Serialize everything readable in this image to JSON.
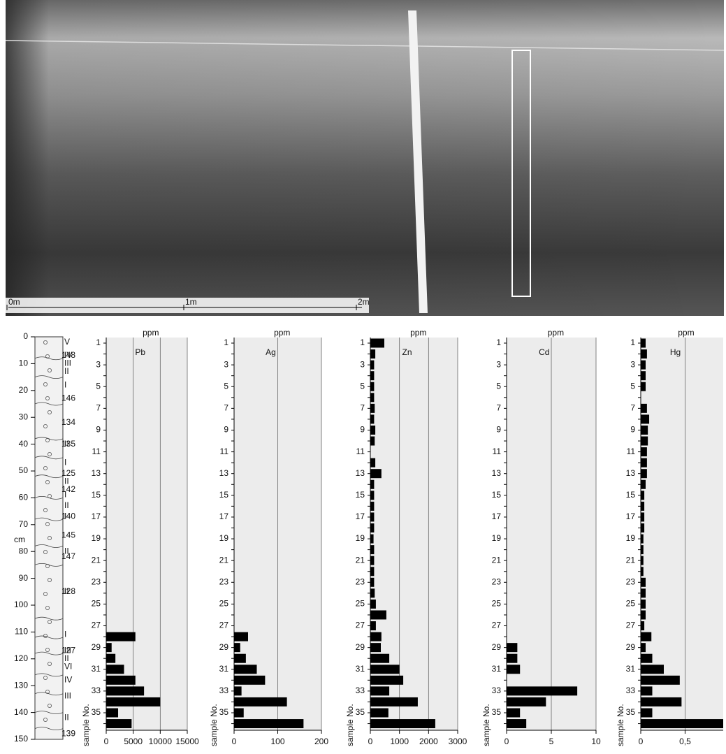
{
  "photo": {
    "scale_labels": [
      "0m",
      "1m",
      "2m"
    ]
  },
  "section_column": {
    "axis_label": "cm",
    "ylim": [
      0,
      150
    ],
    "yticks": [
      0,
      10,
      20,
      30,
      40,
      50,
      60,
      70,
      80,
      90,
      100,
      110,
      120,
      130,
      140,
      150
    ],
    "annotations": [
      {
        "label": "V",
        "depth": 2
      },
      {
        "label": "IV",
        "depth": 7
      },
      {
        "label": "148",
        "depth": 7
      },
      {
        "label": "III",
        "depth": 10
      },
      {
        "label": "II",
        "depth": 13
      },
      {
        "label": "I",
        "depth": 18
      },
      {
        "label": "146",
        "depth": 23
      },
      {
        "label": "134",
        "depth": 32
      },
      {
        "label": "135",
        "depth": 40
      },
      {
        "label": "II",
        "depth": 40
      },
      {
        "label": "I",
        "depth": 47
      },
      {
        "label": "125",
        "depth": 51
      },
      {
        "label": "II",
        "depth": 54
      },
      {
        "label": "142",
        "depth": 57
      },
      {
        "label": "I",
        "depth": 59
      },
      {
        "label": "II",
        "depth": 63
      },
      {
        "label": "140",
        "depth": 67
      },
      {
        "label": "I",
        "depth": 67
      },
      {
        "label": "145",
        "depth": 74
      },
      {
        "label": "II",
        "depth": 80
      },
      {
        "label": "147",
        "depth": 82
      },
      {
        "label": "128",
        "depth": 95
      },
      {
        "label": "II",
        "depth": 95
      },
      {
        "label": "I",
        "depth": 111
      },
      {
        "label": "127",
        "depth": 117
      },
      {
        "label": "III",
        "depth": 117
      },
      {
        "label": "II",
        "depth": 120
      },
      {
        "label": "VI",
        "depth": 123
      },
      {
        "label": "IV",
        "depth": 128
      },
      {
        "label": "III",
        "depth": 134
      },
      {
        "label": "II",
        "depth": 142
      },
      {
        "label": "139",
        "depth": 148
      }
    ]
  },
  "chart_data": [
    {
      "type": "bar",
      "orientation": "horizontal",
      "title": "Pb",
      "unit_label": "ppm",
      "ylabel": "sample No.",
      "color": "#000000",
      "grid": true,
      "categories": [
        1,
        null,
        3,
        null,
        5,
        null,
        7,
        null,
        9,
        null,
        11,
        null,
        13,
        null,
        15,
        null,
        17,
        null,
        19,
        null,
        21,
        null,
        23,
        null,
        25,
        null,
        27,
        null,
        29,
        null,
        31,
        null,
        33,
        null,
        35,
        null
      ],
      "values": [
        0,
        0,
        0,
        0,
        0,
        0,
        0,
        0,
        0,
        0,
        0,
        0,
        0,
        0,
        0,
        0,
        0,
        0,
        0,
        0,
        0,
        0,
        0,
        0,
        0,
        0,
        0,
        5400,
        1000,
        1700,
        3300,
        5400,
        7000,
        10000,
        2200,
        4700
      ],
      "xlim": [
        0,
        15000
      ],
      "xticks": [
        0,
        5000,
        10000,
        15000
      ]
    },
    {
      "type": "bar",
      "orientation": "horizontal",
      "title": "Ag",
      "unit_label": "ppm",
      "ylabel": "sample No.",
      "color": "#000000",
      "grid": true,
      "categories": [
        1,
        null,
        3,
        null,
        5,
        null,
        7,
        null,
        9,
        null,
        11,
        null,
        13,
        null,
        15,
        null,
        17,
        null,
        19,
        null,
        21,
        null,
        23,
        null,
        25,
        null,
        27,
        null,
        29,
        null,
        31,
        null,
        33,
        null,
        35,
        null
      ],
      "values": [
        0,
        0,
        0,
        0,
        0,
        0,
        0,
        0,
        0,
        0,
        0,
        0,
        0,
        0,
        0,
        0,
        0,
        0,
        0,
        0,
        0,
        0,
        0,
        0,
        0,
        0,
        0,
        32,
        14,
        27,
        52,
        71,
        17,
        121,
        22,
        159
      ],
      "xlim": [
        0,
        200
      ],
      "xticks": [
        0,
        100,
        200
      ]
    },
    {
      "type": "bar",
      "orientation": "horizontal",
      "title": "Zn",
      "unit_label": "ppm",
      "ylabel": "sample No.",
      "color": "#000000",
      "grid": true,
      "categories": [
        1,
        null,
        3,
        null,
        5,
        null,
        7,
        null,
        9,
        null,
        11,
        null,
        13,
        null,
        15,
        null,
        17,
        null,
        19,
        null,
        21,
        null,
        23,
        null,
        25,
        null,
        27,
        null,
        29,
        null,
        31,
        null,
        33,
        null,
        35,
        null
      ],
      "values": [
        480,
        170,
        130,
        130,
        130,
        130,
        150,
        130,
        170,
        150,
        0,
        170,
        380,
        130,
        130,
        130,
        130,
        130,
        110,
        130,
        130,
        130,
        130,
        150,
        190,
        550,
        190,
        380,
        360,
        650,
        1000,
        1130,
        650,
        1630,
        620,
        2230
      ],
      "xlim": [
        0,
        3000
      ],
      "xticks": [
        0,
        1000,
        2000,
        3000
      ]
    },
    {
      "type": "bar",
      "orientation": "horizontal",
      "title": "Cd",
      "unit_label": "ppm",
      "ylabel": "sample No.",
      "color": "#000000",
      "grid": true,
      "categories": [
        1,
        null,
        3,
        null,
        5,
        null,
        7,
        null,
        9,
        null,
        11,
        null,
        13,
        null,
        15,
        null,
        17,
        null,
        19,
        null,
        21,
        null,
        23,
        null,
        25,
        null,
        27,
        null,
        29,
        null,
        31,
        null,
        33,
        null,
        35,
        null
      ],
      "values": [
        0,
        0,
        0,
        0,
        0,
        0,
        0,
        0,
        0,
        0,
        0,
        0,
        0,
        0,
        0,
        0,
        0,
        0,
        0,
        0,
        0,
        0,
        0,
        0,
        0,
        0,
        0,
        0,
        1.2,
        1.2,
        1.5,
        0,
        7.9,
        4.4,
        1.5,
        2.2
      ],
      "xlim": [
        0,
        10
      ],
      "xticks": [
        0,
        5,
        10
      ]
    },
    {
      "type": "bar",
      "orientation": "horizontal",
      "title": "Hg",
      "unit_label": "ppm",
      "ylabel": "sample No.",
      "color": "#000000",
      "grid": true,
      "categories": [
        1,
        null,
        3,
        null,
        5,
        null,
        7,
        null,
        9,
        null,
        11,
        null,
        13,
        null,
        15,
        null,
        17,
        null,
        19,
        null,
        21,
        null,
        23,
        null,
        25,
        null,
        27,
        null,
        29,
        null,
        31,
        null,
        33,
        null,
        35,
        null
      ],
      "values": [
        0.055,
        0.07,
        0.055,
        0.055,
        0.055,
        null,
        0.07,
        0.095,
        0.08,
        0.08,
        0.07,
        0.07,
        0.07,
        0.055,
        0.04,
        0.04,
        0.04,
        0.04,
        0.03,
        0.03,
        0.03,
        0.03,
        0.055,
        0.055,
        0.055,
        0.055,
        0.04,
        0.12,
        0.055,
        0.13,
        0.26,
        0.44,
        0.13,
        0.46,
        0.13,
        0.93
      ],
      "xlim": [
        0,
        0.93
      ],
      "xticks": [
        0,
        {
          "value": 0.5,
          "label": "0,5"
        }
      ]
    }
  ]
}
